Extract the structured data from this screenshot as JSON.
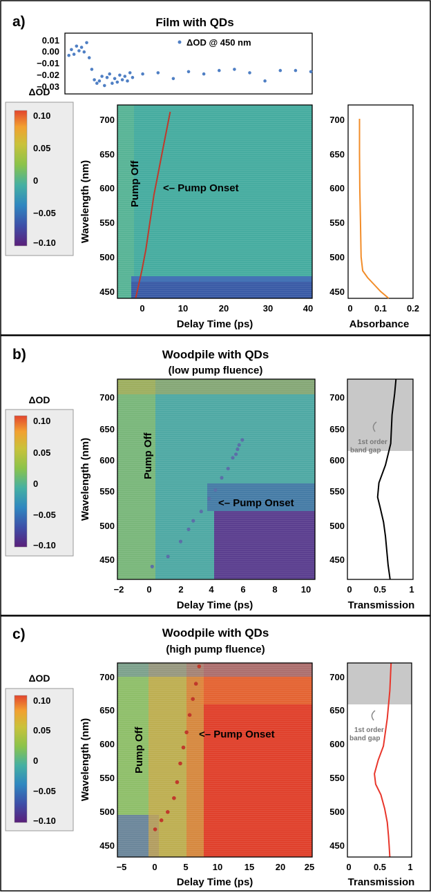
{
  "panels": [
    {
      "letter": "a)",
      "title": "Film with QDs",
      "subtitle": "",
      "colorbar": {
        "title": "ΔOD",
        "ticks": [
          "0.10",
          "0.05",
          "0",
          "−0.05",
          "−0.10"
        ]
      },
      "heatmap": {
        "xlabel": "Delay Time (ps)",
        "ylabel": "Wavelength (nm)",
        "xticks": [
          "0",
          "10",
          "20",
          "30",
          "40"
        ],
        "yticks": [
          "700",
          "650",
          "600",
          "550",
          "500",
          "450"
        ],
        "pump_off_label": "Pump Off",
        "pump_onset_label": "<– Pump Onset"
      },
      "side": {
        "xlabel": "Absorbance",
        "xticks": [
          "0",
          "0.1",
          "0.2"
        ],
        "yticks": [
          "700",
          "650",
          "600",
          "550",
          "500",
          "450"
        ]
      }
    },
    {
      "letter": "b)",
      "title": "Woodpile with QDs",
      "subtitle": "(low pump fluence)",
      "colorbar": {
        "title": "ΔOD",
        "ticks": [
          "0.10",
          "0.05",
          "0",
          "−0.05",
          "−0.10"
        ]
      },
      "heatmap": {
        "xlabel": "Delay Time (ps)",
        "ylabel": "Wavelength (nm)",
        "xticks": [
          "−2",
          "0",
          "2",
          "4",
          "6",
          "8",
          "10"
        ],
        "yticks": [
          "700",
          "650",
          "600",
          "550",
          "500",
          "450"
        ],
        "pump_off_label": "Pump Off",
        "pump_onset_label": "<– Pump Onset"
      },
      "side": {
        "xlabel": "Transmission",
        "xticks": [
          "0",
          "0.5",
          "1"
        ],
        "yticks": [
          "700",
          "650",
          "600",
          "550",
          "500",
          "450"
        ],
        "bandgap_label_1": "1st order",
        "bandgap_label_2": "band gap"
      }
    },
    {
      "letter": "c)",
      "title": "Woodpile with QDs",
      "subtitle": "(high pump fluence)",
      "colorbar": {
        "title": "ΔOD",
        "ticks": [
          "0.10",
          "0.05",
          "0",
          "−0.05",
          "−0.10"
        ]
      },
      "heatmap": {
        "xlabel": "Delay Time (ps)",
        "ylabel": "Wavelength (nm)",
        "xticks": [
          "−5",
          "0",
          "5",
          "10",
          "15",
          "20",
          "25"
        ],
        "yticks": [
          "700",
          "650",
          "600",
          "550",
          "500",
          "450"
        ],
        "pump_off_label": "Pump Off",
        "pump_onset_label": "<– Pump Onset"
      },
      "side": {
        "xlabel": "Transmission",
        "xticks": [
          "0",
          "0.5",
          "1"
        ],
        "yticks": [
          "700",
          "650",
          "600",
          "550",
          "500",
          "450"
        ],
        "bandgap_label_1": "1st order",
        "bandgap_label_2": "band gap"
      }
    }
  ],
  "inset": {
    "legend": "ΔOD @ 450 nm",
    "yticks": [
      "0.01",
      "0.00",
      "−0.01",
      "−0.02",
      "−0.03"
    ]
  },
  "colors": {
    "colormap": [
      "#5a1f7a",
      "#3d4fa8",
      "#2f87c0",
      "#45b0a2",
      "#8bc34a",
      "#c9c23a",
      "#f2a030",
      "#e2452e"
    ],
    "side_curve_a": "#f28c28",
    "side_curve_b": "#000000",
    "side_curve_c": "#e8352a",
    "onset_dots": "#c0392b",
    "inset_dots": "#4f7fc4",
    "bandgap_fill": "#c8c8c8"
  },
  "chart_data": [
    {
      "type": "scatter",
      "name_note": "panel a inset",
      "series": [
        {
          "name": "ΔOD @ 450 nm",
          "x": [
            -7.5,
            -7,
            -6.5,
            -6,
            -5.5,
            -5,
            -4.5,
            -4,
            -3.5,
            -3,
            -2.5,
            -2,
            -1.5,
            -1,
            -0.5,
            0,
            0.5,
            1,
            1.5,
            2,
            2.5,
            3,
            3.5,
            4,
            4.5,
            5,
            7,
            10,
            13,
            16,
            19,
            22,
            25,
            28,
            31,
            34,
            37,
            40
          ],
          "y": [
            -0.003,
            0.002,
            -0.002,
            0.005,
            0.001,
            0.004,
            0.0,
            0.008,
            -0.005,
            -0.015,
            -0.024,
            -0.027,
            -0.025,
            -0.021,
            -0.029,
            -0.022,
            -0.019,
            -0.027,
            -0.023,
            -0.026,
            -0.02,
            -0.024,
            -0.021,
            -0.025,
            -0.018,
            -0.022,
            -0.019,
            -0.018,
            -0.023,
            -0.017,
            -0.019,
            -0.016,
            -0.015,
            -0.018,
            -0.025,
            -0.016,
            -0.016,
            -0.017
          ]
        }
      ],
      "ylim": [
        -0.035,
        0.015
      ],
      "xlim": [
        -8,
        40
      ]
    },
    {
      "type": "heatmap",
      "name_note": "panel a",
      "xlim": [
        -8,
        40
      ],
      "ylim": [
        440,
        720
      ],
      "color_range": [
        -0.1,
        0.1
      ],
      "pump_onset_x": [
        -3.5,
        -2,
        -1,
        0,
        1,
        2,
        3,
        4,
        5
      ],
      "pump_onset_y": [
        440,
        480,
        510,
        550,
        590,
        620,
        650,
        680,
        710
      ]
    },
    {
      "type": "line",
      "name_note": "panel a absorbance",
      "x": [
        0.035,
        0.035,
        0.036,
        0.038,
        0.04,
        0.045,
        0.06,
        0.08,
        0.1,
        0.125
      ],
      "y": [
        700,
        650,
        600,
        550,
        500,
        480,
        470,
        460,
        450,
        440
      ],
      "xlim": [
        0,
        0.2
      ],
      "ylim": [
        440,
        720
      ]
    },
    {
      "type": "heatmap",
      "name_note": "panel b",
      "xlim": [
        -2,
        10.5
      ],
      "ylim": [
        440,
        720
      ],
      "color_range": [
        -0.1,
        0.1
      ],
      "pump_onset_x": [
        0.2,
        1.2,
        2.0,
        2.5,
        2.8,
        3.3,
        3.8,
        4.2,
        4.6,
        5.0,
        5.3,
        5.5,
        5.6,
        5.7,
        5.9
      ],
      "pump_onset_y": [
        458,
        472,
        493,
        510,
        522,
        535,
        553,
        565,
        582,
        595,
        610,
        615,
        622,
        628,
        635
      ]
    },
    {
      "type": "line",
      "name_note": "panel b transmission",
      "x": [
        0.74,
        0.72,
        0.68,
        0.66,
        0.58,
        0.48,
        0.46,
        0.5,
        0.55,
        0.58,
        0.6,
        0.62,
        0.65
      ],
      "y": [
        720,
        700,
        670,
        630,
        600,
        575,
        555,
        540,
        520,
        500,
        480,
        460,
        440
      ],
      "xlim": [
        0,
        1
      ],
      "ylim": [
        440,
        720
      ],
      "bandgap_range": [
        620,
        720
      ]
    },
    {
      "type": "heatmap",
      "name_note": "panel c",
      "xlim": [
        -6,
        25
      ],
      "ylim": [
        440,
        720
      ],
      "color_range": [
        -0.1,
        0.1
      ],
      "pump_onset_x": [
        0,
        1,
        2,
        3,
        3.5,
        4,
        4.5,
        5,
        5.5,
        6,
        6.5,
        7
      ],
      "pump_onset_y": [
        480,
        493,
        505,
        525,
        548,
        575,
        598,
        620,
        645,
        668,
        690,
        715
      ]
    },
    {
      "type": "line",
      "name_note": "panel c transmission",
      "x": [
        0.68,
        0.66,
        0.62,
        0.56,
        0.48,
        0.42,
        0.44,
        0.52,
        0.58,
        0.62,
        0.64,
        0.65,
        0.66
      ],
      "y": [
        720,
        680,
        640,
        600,
        580,
        560,
        545,
        530,
        510,
        490,
        470,
        455,
        440
      ],
      "xlim": [
        0,
        1
      ],
      "ylim": [
        440,
        720
      ],
      "bandgap_range": [
        660,
        720
      ]
    }
  ]
}
